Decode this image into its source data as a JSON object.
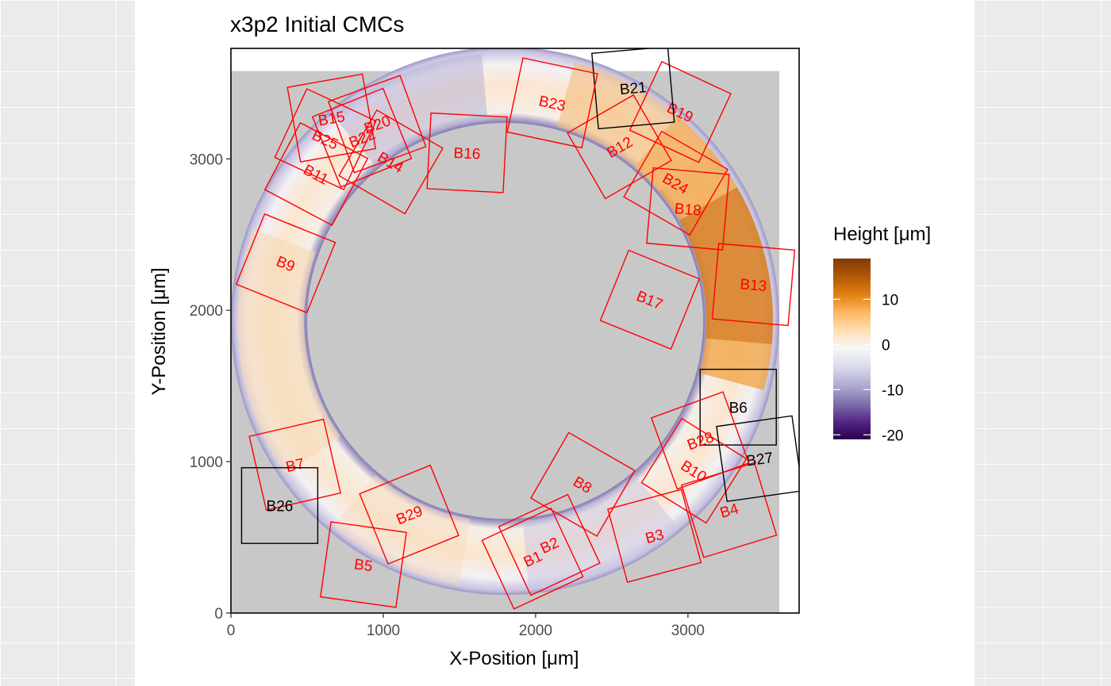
{
  "chart_data": {
    "type": "heatmap",
    "title": "x3p2 Initial CMCs",
    "xlabel": "X-Position [μm]",
    "ylabel": "Y-Position [μm]",
    "xlim": [
      0,
      3730
    ],
    "ylim": [
      0,
      3730
    ],
    "x_ticks": [
      0,
      1000,
      2000,
      3000
    ],
    "y_ticks": [
      0,
      1000,
      2000,
      3000
    ],
    "surface": {
      "x_range": [
        0,
        3600
      ],
      "y_range": [
        0,
        3580
      ],
      "background_color": "#c8c8c8",
      "ring_center": [
        1800,
        1930
      ],
      "ring_inner_radius": 1300,
      "ring_outer_radius": 1800
    },
    "legend": {
      "title": "Height [μm]",
      "position": "right",
      "breaks": [
        10,
        0,
        -10,
        -20
      ],
      "break_labels": [
        "10",
        "0",
        "-10",
        "-20"
      ],
      "range": [
        -21,
        19
      ],
      "colors": [
        "#2d004b",
        "#542788",
        "#8073ac",
        "#b2abd2",
        "#d8daeb",
        "#f7f7f7",
        "#fee0b6",
        "#fdb863",
        "#e08214",
        "#b35806",
        "#7f3b08"
      ]
    },
    "cell_colors": {
      "cmc": "#ff0000",
      "non_cmc": "#000000"
    },
    "cells": [
      {
        "label": "B1",
        "status": "cmc",
        "x": 1980,
        "y": 360,
        "angle": 25
      },
      {
        "label": "B2",
        "status": "cmc",
        "x": 2090,
        "y": 450,
        "angle": 25
      },
      {
        "label": "B3",
        "status": "cmc",
        "x": 2780,
        "y": 510,
        "angle": 15
      },
      {
        "label": "B4",
        "status": "cmc",
        "x": 3270,
        "y": 680,
        "angle": 17
      },
      {
        "label": "B5",
        "status": "cmc",
        "x": 870,
        "y": 320,
        "angle": -8
      },
      {
        "label": "B6",
        "status": "non_cmc",
        "x": 3330,
        "y": 1360,
        "angle": 0
      },
      {
        "label": "B7",
        "status": "cmc",
        "x": 420,
        "y": 980,
        "angle": 13
      },
      {
        "label": "B8",
        "status": "cmc",
        "x": 2310,
        "y": 850,
        "angle": -30
      },
      {
        "label": "B9",
        "status": "cmc",
        "x": 360,
        "y": 2310,
        "angle": -22
      },
      {
        "label": "B10",
        "status": "cmc",
        "x": 3040,
        "y": 940,
        "angle": -32
      },
      {
        "label": "B11",
        "status": "cmc",
        "x": 560,
        "y": 2900,
        "angle": -28
      },
      {
        "label": "B12",
        "status": "cmc",
        "x": 2550,
        "y": 3080,
        "angle": 30
      },
      {
        "label": "B13",
        "status": "cmc",
        "x": 3430,
        "y": 2170,
        "angle": -5
      },
      {
        "label": "B14",
        "status": "cmc",
        "x": 1050,
        "y": 2980,
        "angle": -30
      },
      {
        "label": "B15",
        "status": "cmc",
        "x": 660,
        "y": 3270,
        "angle": 10
      },
      {
        "label": "B16",
        "status": "cmc",
        "x": 1550,
        "y": 3040,
        "angle": -3
      },
      {
        "label": "B17",
        "status": "cmc",
        "x": 2750,
        "y": 2070,
        "angle": -22
      },
      {
        "label": "B18",
        "status": "cmc",
        "x": 3000,
        "y": 2670,
        "angle": -5
      },
      {
        "label": "B19",
        "status": "cmc",
        "x": 2950,
        "y": 3310,
        "angle": -25
      },
      {
        "label": "B20",
        "status": "cmc",
        "x": 960,
        "y": 3230,
        "angle": 20
      },
      {
        "label": "B21",
        "status": "non_cmc",
        "x": 2640,
        "y": 3470,
        "angle": 5
      },
      {
        "label": "B22",
        "status": "cmc",
        "x": 860,
        "y": 3140,
        "angle": 22
      },
      {
        "label": "B23",
        "status": "cmc",
        "x": 2110,
        "y": 3370,
        "angle": -12
      },
      {
        "label": "B24",
        "status": "cmc",
        "x": 2920,
        "y": 2840,
        "angle": -30
      },
      {
        "label": "B25",
        "status": "cmc",
        "x": 620,
        "y": 3130,
        "angle": -25
      },
      {
        "label": "B26",
        "status": "non_cmc",
        "x": 320,
        "y": 710,
        "angle": 0
      },
      {
        "label": "B27",
        "status": "non_cmc",
        "x": 3470,
        "y": 1020,
        "angle": 8
      },
      {
        "label": "B28",
        "status": "cmc",
        "x": 3080,
        "y": 1140,
        "angle": 20
      },
      {
        "label": "B29",
        "status": "cmc",
        "x": 1170,
        "y": 650,
        "angle": 22
      }
    ]
  }
}
